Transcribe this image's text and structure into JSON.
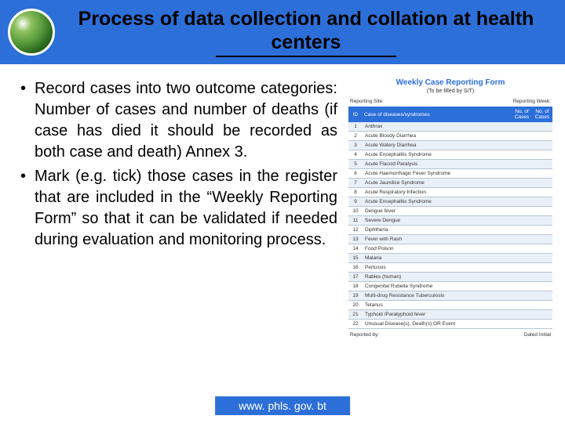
{
  "colors": {
    "header_bg": "#2d6fd8",
    "title_text": "#000000",
    "body_text": "#000000",
    "footer_bg": "#2d6fd8",
    "footer_text": "#ffffff",
    "table_header_bg": "#2d6fd8",
    "table_header_text": "#ffffff",
    "row_alt_bg": "#eaf0f8",
    "row_border": "#b8c4d4"
  },
  "title": "Process of data collection and collation at health centers",
  "bullets": [
    "Record cases into two outcome categories: Number of cases and number of deaths (if case has died it should be recorded as both case and death) Annex 3.",
    "Mark (e.g. tick) those cases in the register that are included in the “Weekly Reporting Form” so that it can be validated if needed during evaluation and monitoring process."
  ],
  "form": {
    "title": "Weekly Case Reporting Form",
    "subtitle": "(To be filled by S/T)",
    "meta_left": "Reporting Site:",
    "meta_right": "Reporting Week:",
    "headers": {
      "id": "ID",
      "name": "Case of diseases/syndromes",
      "n1": "No. of Cases",
      "n2": "No. of Cases"
    },
    "rows": [
      {
        "id": "1",
        "name": "Anthrax"
      },
      {
        "id": "2",
        "name": "Acute Bloody Diarrhea"
      },
      {
        "id": "3",
        "name": "Acute Watery Diarrhea"
      },
      {
        "id": "4",
        "name": "Acute Encephalitis Syndrome"
      },
      {
        "id": "5",
        "name": "Acute Flaccid Paralysis"
      },
      {
        "id": "6",
        "name": "Acute Haemorrhagic Fever Syndrome"
      },
      {
        "id": "7",
        "name": "Acute Jaundice Syndrome"
      },
      {
        "id": "8",
        "name": "Acute Respiratory Infection"
      },
      {
        "id": "9",
        "name": "Acute Encephalitis Syndrome"
      },
      {
        "id": "10",
        "name": "Dengue fever"
      },
      {
        "id": "11",
        "name": "Severe Dengue"
      },
      {
        "id": "12",
        "name": "Diphtheria"
      },
      {
        "id": "13",
        "name": "Fever with Rash"
      },
      {
        "id": "14",
        "name": "Food Poison"
      },
      {
        "id": "15",
        "name": "Malaria"
      },
      {
        "id": "16",
        "name": "Pertussis"
      },
      {
        "id": "17",
        "name": "Rabies (human)"
      },
      {
        "id": "18",
        "name": "Congenital Rubella Syndrome"
      },
      {
        "id": "19",
        "name": "Multi-drug Resistance Tuberculosis"
      },
      {
        "id": "20",
        "name": "Tetanus"
      },
      {
        "id": "21",
        "name": "Typhoid /Paratyphoid fever"
      },
      {
        "id": "22",
        "name": "Unusual Disease(s), Death(s) OR Event"
      }
    ],
    "footer_left": "Reported by:",
    "footer_right": "Dated Initial"
  },
  "footer": "www. phls. gov. bt"
}
